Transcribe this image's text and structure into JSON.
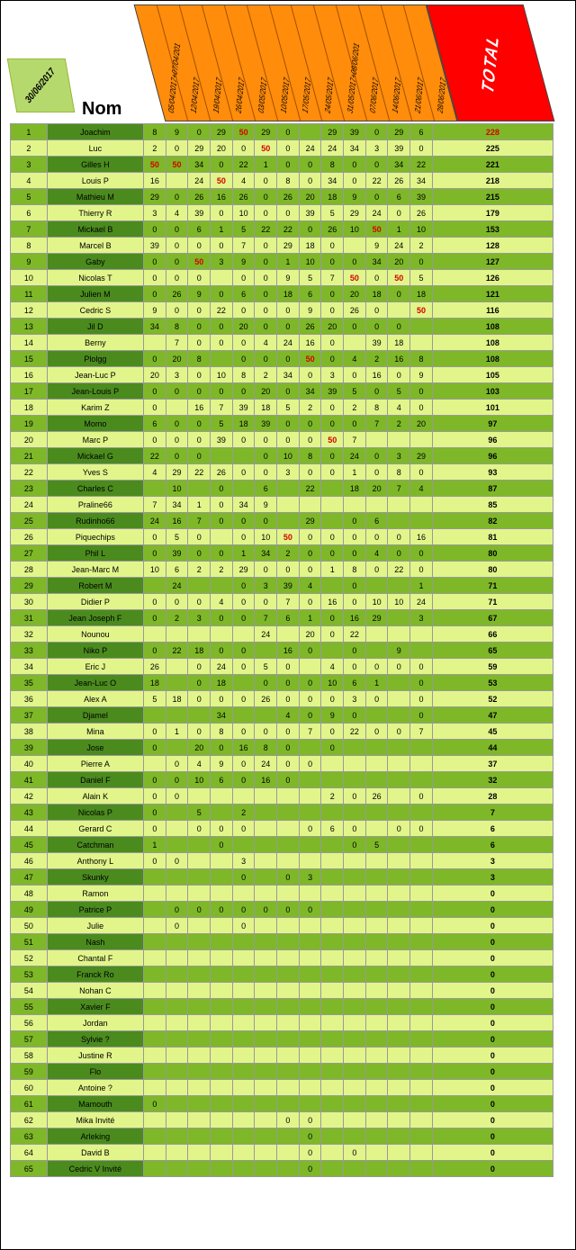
{
  "date": "30/06/2017",
  "nom_label": "Nom",
  "total_label": "TOTAL",
  "date_headers": [
    "05/04/2017+07/04/201",
    "12/04/2017",
    "19/04/2017",
    "26/04/2017",
    "03/05/2017",
    "10/05/2017",
    "17/05/2017",
    "24/05/2017",
    "31/05/2017+08/06/201",
    "07/06/2017",
    "14/06/2017",
    "21/06/2017",
    "28/06/2017"
  ],
  "rows": [
    {
      "n": "Joachim",
      "s": [
        8,
        9,
        0,
        29,
        [
          50,
          1
        ],
        29,
        0,
        "",
        29,
        39,
        0,
        29,
        6
      ],
      "t": [
        228,
        1
      ]
    },
    {
      "n": "Luc",
      "s": [
        2,
        0,
        29,
        20,
        0,
        [
          50,
          1
        ],
        0,
        24,
        24,
        34,
        3,
        39,
        0
      ],
      "t": 225
    },
    {
      "n": "Gilles H",
      "s": [
        [
          50,
          1
        ],
        [
          50,
          1
        ],
        34,
        0,
        22,
        1,
        0,
        0,
        8,
        0,
        0,
        34,
        22
      ],
      "t": 221
    },
    {
      "n": "Louis P",
      "s": [
        16,
        "",
        24,
        [
          50,
          1
        ],
        4,
        0,
        8,
        0,
        34,
        0,
        22,
        26,
        34
      ],
      "t": 218
    },
    {
      "n": "Mathieu M",
      "s": [
        29,
        0,
        26,
        16,
        26,
        0,
        26,
        20,
        18,
        9,
        0,
        6,
        39
      ],
      "t": 215
    },
    {
      "n": "Thierry R",
      "s": [
        3,
        4,
        39,
        0,
        10,
        0,
        0,
        39,
        5,
        29,
        24,
        0,
        26
      ],
      "t": 179
    },
    {
      "n": "Mickael B",
      "s": [
        0,
        0,
        6,
        1,
        5,
        22,
        22,
        0,
        26,
        10,
        [
          50,
          1
        ],
        1,
        10
      ],
      "t": 153
    },
    {
      "n": "Marcel B",
      "s": [
        39,
        0,
        0,
        0,
        7,
        0,
        29,
        18,
        0,
        "",
        9,
        24,
        2
      ],
      "t": 128
    },
    {
      "n": "Gaby",
      "s": [
        0,
        0,
        [
          50,
          1
        ],
        3,
        9,
        0,
        1,
        10,
        0,
        0,
        34,
        20,
        0
      ],
      "t": 127
    },
    {
      "n": "Nicolas T",
      "s": [
        0,
        0,
        0,
        "",
        0,
        0,
        9,
        5,
        7,
        [
          50,
          1
        ],
        0,
        [
          50,
          1
        ],
        5
      ],
      "t": 126
    },
    {
      "n": "Julien M",
      "s": [
        0,
        26,
        9,
        0,
        6,
        0,
        18,
        6,
        0,
        20,
        18,
        0,
        18
      ],
      "t": 121
    },
    {
      "n": "Cedric S",
      "s": [
        9,
        0,
        0,
        22,
        0,
        0,
        0,
        9,
        0,
        26,
        0,
        "",
        [
          50,
          1
        ]
      ],
      "t": 116
    },
    {
      "n": "Jil D",
      "s": [
        34,
        8,
        0,
        0,
        20,
        0,
        0,
        26,
        20,
        0,
        0,
        0,
        ""
      ],
      "t": 108
    },
    {
      "n": "Berny",
      "s": [
        "",
        7,
        0,
        0,
        0,
        4,
        24,
        16,
        0,
        "",
        39,
        18,
        ""
      ],
      "t": 108
    },
    {
      "n": "Plolgg",
      "s": [
        0,
        20,
        8,
        "",
        0,
        0,
        0,
        [
          50,
          1
        ],
        0,
        4,
        2,
        16,
        8
      ],
      "t": 108
    },
    {
      "n": "Jean-Luc P",
      "s": [
        20,
        3,
        0,
        10,
        8,
        2,
        34,
        0,
        3,
        0,
        16,
        0,
        9
      ],
      "t": 105
    },
    {
      "n": "Jean-Louis P",
      "s": [
        0,
        0,
        0,
        0,
        0,
        20,
        0,
        34,
        39,
        5,
        0,
        5,
        0
      ],
      "t": 103
    },
    {
      "n": "Karim Z",
      "s": [
        0,
        "",
        16,
        7,
        39,
        18,
        5,
        2,
        0,
        2,
        8,
        4,
        0
      ],
      "t": 101
    },
    {
      "n": "Momo",
      "s": [
        6,
        0,
        0,
        5,
        18,
        39,
        0,
        0,
        0,
        0,
        7,
        2,
        20
      ],
      "t": 97
    },
    {
      "n": "Marc P",
      "s": [
        0,
        0,
        0,
        39,
        0,
        0,
        0,
        0,
        [
          50,
          1
        ],
        7,
        "",
        "",
        ""
      ],
      "t": 96
    },
    {
      "n": "Mickael G",
      "s": [
        22,
        0,
        0,
        "",
        "",
        0,
        10,
        8,
        0,
        24,
        0,
        3,
        29
      ],
      "t": 96
    },
    {
      "n": "Yves S",
      "s": [
        4,
        29,
        22,
        26,
        0,
        0,
        3,
        0,
        0,
        1,
        0,
        8,
        0
      ],
      "t": 93
    },
    {
      "n": "Charles C",
      "s": [
        "",
        10,
        "",
        0,
        "",
        6,
        "",
        22,
        "",
        18,
        20,
        7,
        4
      ],
      "t": 87
    },
    {
      "n": "Praline66",
      "s": [
        7,
        34,
        1,
        0,
        34,
        9,
        "",
        "",
        "",
        "",
        "",
        "",
        ""
      ],
      "t": 85
    },
    {
      "n": "Rudinho66",
      "s": [
        24,
        16,
        7,
        0,
        0,
        0,
        "",
        29,
        "",
        0,
        6,
        "",
        ""
      ],
      "t": 82
    },
    {
      "n": "Piquechips",
      "s": [
        0,
        5,
        0,
        "",
        0,
        10,
        [
          50,
          1
        ],
        0,
        0,
        0,
        0,
        0,
        16
      ],
      "t": 81
    },
    {
      "n": "Phil L",
      "s": [
        0,
        39,
        0,
        0,
        1,
        34,
        2,
        0,
        0,
        0,
        4,
        0,
        0
      ],
      "t": 80
    },
    {
      "n": "Jean-Marc M",
      "s": [
        10,
        6,
        2,
        2,
        29,
        0,
        0,
        0,
        1,
        8,
        0,
        22,
        0
      ],
      "t": 80
    },
    {
      "n": "Robert M",
      "s": [
        "",
        24,
        "",
        "",
        0,
        3,
        39,
        4,
        "",
        0,
        "",
        "",
        1
      ],
      "t": 71
    },
    {
      "n": "Didier P",
      "s": [
        0,
        0,
        0,
        4,
        0,
        0,
        7,
        0,
        16,
        0,
        10,
        10,
        24
      ],
      "t": 71
    },
    {
      "n": "Jean Joseph F",
      "s": [
        0,
        2,
        3,
        0,
        0,
        7,
        6,
        1,
        0,
        16,
        29,
        "",
        3
      ],
      "t": 67
    },
    {
      "n": "Nounou",
      "s": [
        "",
        "",
        "",
        "",
        "",
        24,
        "",
        20,
        0,
        22,
        "",
        "",
        ""
      ],
      "t": 66
    },
    {
      "n": "Niko P",
      "s": [
        0,
        22,
        18,
        0,
        0,
        "",
        16,
        0,
        "",
        0,
        "",
        9,
        ""
      ],
      "t": 65
    },
    {
      "n": "Eric J",
      "s": [
        26,
        "",
        0,
        24,
        0,
        5,
        0,
        "",
        4,
        0,
        0,
        0,
        0
      ],
      "t": 59
    },
    {
      "n": "Jean-Luc O",
      "s": [
        18,
        "",
        0,
        18,
        "",
        0,
        0,
        0,
        10,
        6,
        1,
        "",
        0
      ],
      "t": 53
    },
    {
      "n": "Alex A",
      "s": [
        5,
        18,
        0,
        0,
        0,
        26,
        0,
        0,
        0,
        3,
        0,
        "",
        0
      ],
      "t": 52
    },
    {
      "n": "Djamel",
      "s": [
        "",
        "",
        "",
        34,
        "",
        "",
        4,
        0,
        9,
        0,
        "",
        "",
        0
      ],
      "t": 47
    },
    {
      "n": "Mina",
      "s": [
        0,
        1,
        0,
        8,
        0,
        0,
        0,
        7,
        0,
        22,
        0,
        0,
        7
      ],
      "t": 45
    },
    {
      "n": "Jose",
      "s": [
        0,
        "",
        20,
        0,
        16,
        8,
        0,
        "",
        0,
        "",
        "",
        "",
        ""
      ],
      "t": 44
    },
    {
      "n": "Pierre A",
      "s": [
        "",
        0,
        4,
        9,
        0,
        24,
        0,
        0,
        "",
        "",
        "",
        "",
        ""
      ],
      "t": 37
    },
    {
      "n": "Daniel F",
      "s": [
        0,
        0,
        10,
        6,
        0,
        16,
        0,
        "",
        "",
        "",
        "",
        "",
        ""
      ],
      "t": 32
    },
    {
      "n": "Alain K",
      "s": [
        0,
        0,
        "",
        "",
        "",
        "",
        "",
        "",
        2,
        0,
        26,
        "",
        0
      ],
      "t": 28
    },
    {
      "n": "Nicolas P",
      "s": [
        0,
        "",
        5,
        "",
        2,
        "",
        "",
        "",
        "",
        "",
        "",
        "",
        ""
      ],
      "t": 7
    },
    {
      "n": "Gerard C",
      "s": [
        0,
        "",
        0,
        0,
        0,
        "",
        "",
        0,
        6,
        0,
        "",
        0,
        0
      ],
      "t": 6
    },
    {
      "n": "Catchman",
      "s": [
        1,
        "",
        "",
        0,
        "",
        "",
        "",
        "",
        "",
        0,
        5,
        "",
        ""
      ],
      "t": 6
    },
    {
      "n": "Anthony L",
      "s": [
        0,
        0,
        "",
        "",
        3,
        "",
        "",
        "",
        "",
        "",
        "",
        "",
        ""
      ],
      "t": 3
    },
    {
      "n": "Skunky",
      "s": [
        "",
        "",
        "",
        "",
        0,
        "",
        0,
        3,
        "",
        "",
        "",
        "",
        ""
      ],
      "t": 3
    },
    {
      "n": "Ramon",
      "s": [
        "",
        "",
        "",
        "",
        "",
        "",
        "",
        "",
        "",
        "",
        "",
        "",
        ""
      ],
      "t": 0
    },
    {
      "n": "Patrice P",
      "s": [
        "",
        0,
        0,
        0,
        0,
        0,
        0,
        0,
        "",
        "",
        "",
        "",
        ""
      ],
      "t": 0
    },
    {
      "n": "Julie",
      "s": [
        "",
        0,
        "",
        "",
        0,
        "",
        "",
        "",
        "",
        "",
        "",
        "",
        ""
      ],
      "t": 0
    },
    {
      "n": "Nash",
      "s": [
        "",
        "",
        "",
        "",
        "",
        "",
        "",
        "",
        "",
        "",
        "",
        "",
        ""
      ],
      "t": 0
    },
    {
      "n": "Chantal F",
      "s": [
        "",
        "",
        "",
        "",
        "",
        "",
        "",
        "",
        "",
        "",
        "",
        "",
        ""
      ],
      "t": 0
    },
    {
      "n": "Franck Ro",
      "s": [
        "",
        "",
        "",
        "",
        "",
        "",
        "",
        "",
        "",
        "",
        "",
        "",
        ""
      ],
      "t": 0
    },
    {
      "n": "Nohan C",
      "s": [
        "",
        "",
        "",
        "",
        "",
        "",
        "",
        "",
        "",
        "",
        "",
        "",
        ""
      ],
      "t": 0
    },
    {
      "n": "Xavier F",
      "s": [
        "",
        "",
        "",
        "",
        "",
        "",
        "",
        "",
        "",
        "",
        "",
        "",
        ""
      ],
      "t": 0
    },
    {
      "n": "Jordan",
      "s": [
        "",
        "",
        "",
        "",
        "",
        "",
        "",
        "",
        "",
        "",
        "",
        "",
        ""
      ],
      "t": 0
    },
    {
      "n": "Sylvie ?",
      "s": [
        "",
        "",
        "",
        "",
        "",
        "",
        "",
        "",
        "",
        "",
        "",
        "",
        ""
      ],
      "t": 0
    },
    {
      "n": "Justine R",
      "s": [
        "",
        "",
        "",
        "",
        "",
        "",
        "",
        "",
        "",
        "",
        "",
        "",
        ""
      ],
      "t": 0
    },
    {
      "n": "Flo",
      "s": [
        "",
        "",
        "",
        "",
        "",
        "",
        "",
        "",
        "",
        "",
        "",
        "",
        ""
      ],
      "t": 0
    },
    {
      "n": "Antoine ?",
      "s": [
        "",
        "",
        "",
        "",
        "",
        "",
        "",
        "",
        "",
        "",
        "",
        "",
        ""
      ],
      "t": 0
    },
    {
      "n": "Mamouth",
      "s": [
        0,
        "",
        "",
        "",
        "",
        "",
        "",
        "",
        "",
        "",
        "",
        "",
        ""
      ],
      "t": 0
    },
    {
      "n": "Mika Invité",
      "s": [
        "",
        "",
        "",
        "",
        "",
        "",
        0,
        0,
        "",
        "",
        "",
        "",
        ""
      ],
      "t": 0
    },
    {
      "n": "Arleking",
      "s": [
        "",
        "",
        "",
        "",
        "",
        "",
        "",
        0,
        "",
        "",
        "",
        "",
        ""
      ],
      "t": 0
    },
    {
      "n": "David B",
      "s": [
        "",
        "",
        "",
        "",
        "",
        "",
        "",
        0,
        "",
        0,
        "",
        "",
        ""
      ],
      "t": 0
    },
    {
      "n": "Cedric V Invité",
      "s": [
        "",
        "",
        "",
        "",
        "",
        "",
        "",
        0,
        "",
        "",
        "",
        "",
        ""
      ],
      "t": 0
    }
  ],
  "colors": {
    "row_dark": "#7eb828",
    "row_light": "#e2f58b",
    "header_orange": "#ff8c0a",
    "total_red": "#ff0000",
    "badge": "#b6d96e"
  }
}
